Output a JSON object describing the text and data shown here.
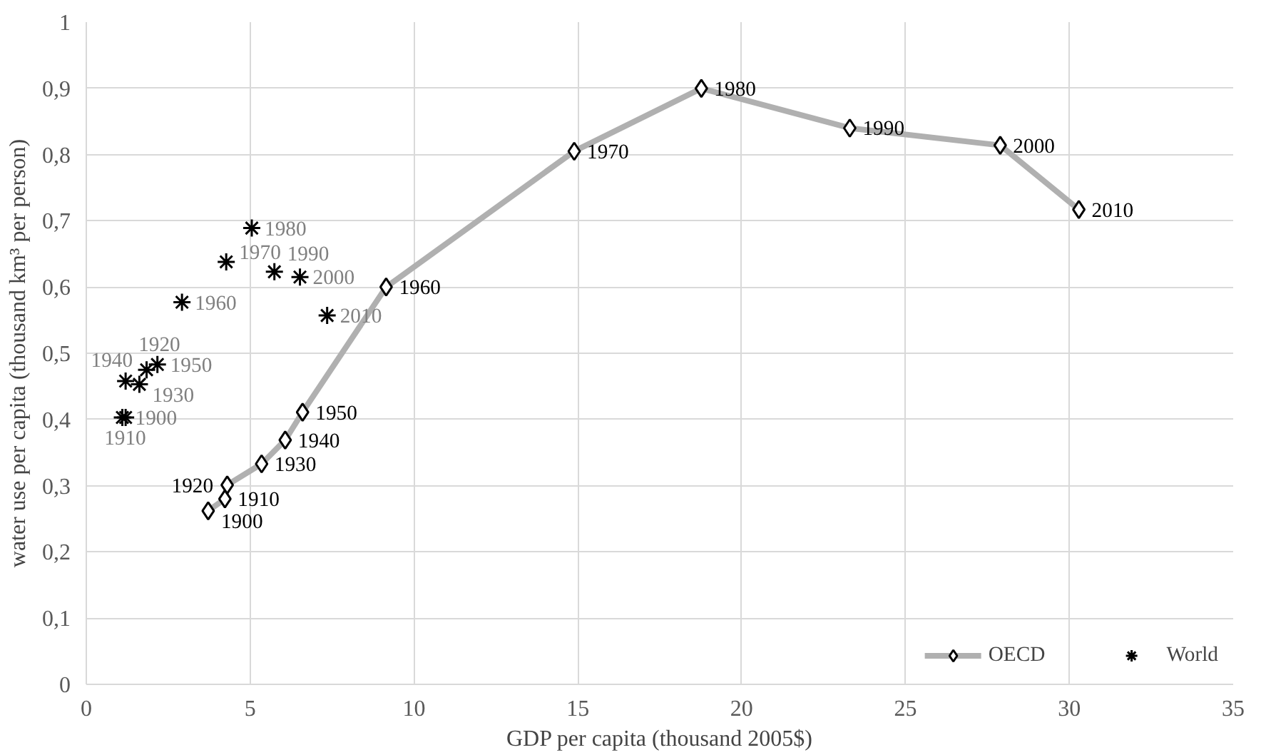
{
  "chart_data": {
    "type": "line",
    "xlabel": "GDP per capita (thousand 2005$)",
    "ylabel": "water use per capita (thousand km³ per person)",
    "xlim": [
      0,
      35
    ],
    "xticks": [
      0,
      5,
      10,
      15,
      20,
      25,
      30,
      35
    ],
    "ylim": [
      0,
      1
    ],
    "yticks": [
      0,
      {
        "value": 0.1,
        "label": "0,1"
      },
      {
        "value": 0.2,
        "label": "0,2"
      },
      {
        "value": 0.3,
        "label": "0,3"
      },
      {
        "value": 0.4,
        "label": "0,4"
      },
      {
        "value": 0.5,
        "label": "0,5"
      },
      {
        "value": 0.6,
        "label": "0,6"
      },
      {
        "value": 0.7,
        "label": "0,7"
      },
      {
        "value": 0.8,
        "label": "0,8"
      },
      {
        "value": 0.9,
        "label": "0,9"
      },
      1
    ],
    "grid": true,
    "legend": "bottom right",
    "series": [
      {
        "name": "OECD",
        "marker": "diamond",
        "line_style": "solid",
        "color": "#b0b0b0",
        "x": [
          3.72,
          4.23,
          4.3,
          5.35,
          6.07,
          6.6,
          9.15,
          14.89,
          18.77,
          23.3,
          27.89,
          30.29
        ],
        "values": [
          0.262,
          0.28,
          0.301,
          0.333,
          0.369,
          0.411,
          0.6,
          0.805,
          0.9,
          0.84,
          0.814,
          0.717
        ]
      },
      {
        "name": "World",
        "type": "scatter",
        "marker": "cross",
        "color": "#000000",
        "x": [
          1.1,
          1.2,
          1.2,
          1.62,
          1.84,
          2.17,
          2.92,
          4.27,
          5.05,
          5.74,
          6.52,
          7.35
        ],
        "values": [
          0.403,
          0.403,
          0.458,
          0.453,
          0.475,
          0.483,
          0.577,
          0.638,
          0.689,
          0.623,
          0.615,
          0.557
        ]
      }
    ],
    "annotations": [
      {
        "text": "1900",
        "x": 3.72,
        "y": 0.262
      },
      {
        "text": "1910",
        "x": 4.23,
        "y": 0.28
      },
      {
        "text": "1920",
        "x": 4.3,
        "y": 0.301
      },
      {
        "text": "1930",
        "x": 5.35,
        "y": 0.333
      },
      {
        "text": "1940",
        "x": 6.07,
        "y": 0.369
      },
      {
        "text": "1950",
        "x": 6.6,
        "y": 0.411
      },
      {
        "text": "1960",
        "x": 9.15,
        "y": 0.6
      },
      {
        "text": "1970",
        "x": 14.89,
        "y": 0.805
      },
      {
        "text": "1980",
        "x": 18.77,
        "y": 0.9
      },
      {
        "text": "1990",
        "x": 23.3,
        "y": 0.84
      },
      {
        "text": "2000",
        "x": 27.89,
        "y": 0.814
      },
      {
        "text": "2010",
        "x": 30.29,
        "y": 0.717
      },
      {
        "text": "1900",
        "x": 1.1,
        "y": 0.403
      },
      {
        "text": "1910",
        "x": 1.2,
        "y": 0.403
      },
      {
        "text": "1920",
        "x": 1.2,
        "y": 0.458
      },
      {
        "text": "1930",
        "x": 1.62,
        "y": 0.453
      },
      {
        "text": "1940",
        "x": 1.84,
        "y": 0.475
      },
      {
        "text": "1950",
        "x": 2.17,
        "y": 0.483
      },
      {
        "text": "1960",
        "x": 2.92,
        "y": 0.577
      },
      {
        "text": "1970",
        "x": 4.27,
        "y": 0.638
      },
      {
        "text": "1980",
        "x": 5.05,
        "y": 0.689
      },
      {
        "text": "1990",
        "x": 5.74,
        "y": 0.623
      },
      {
        "text": "2000",
        "x": 6.52,
        "y": 0.615
      },
      {
        "text": "2010",
        "x": 7.35,
        "y": 0.557
      }
    ]
  }
}
